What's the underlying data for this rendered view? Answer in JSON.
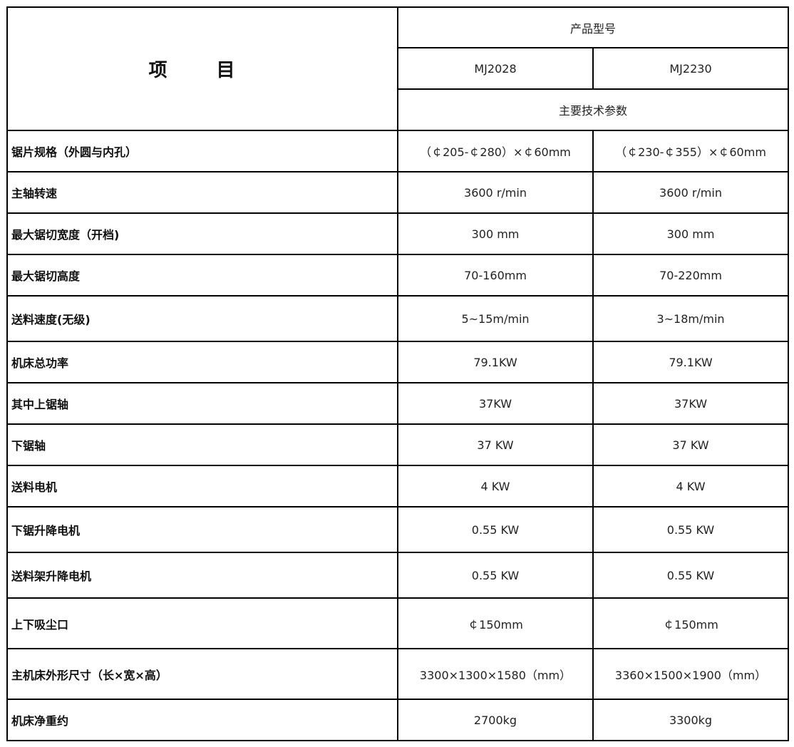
{
  "header": {
    "item_title": "项 目",
    "product_model": "产品型号",
    "models": [
      "MJ2028",
      "MJ2230"
    ],
    "main_params": "主要技术参数"
  },
  "rows": [
    {
      "label": "锯片规格（外圆与内孔）",
      "values": [
        "（￠205-￠280）×￠60mm",
        "（￠230-￠355）×￠60mm"
      ]
    },
    {
      "label": "主轴转速",
      "values": [
        "3600 r/min",
        "3600 r/min"
      ]
    },
    {
      "label": "最大锯切宽度（开档)",
      "values": [
        "300 mm",
        "300 mm"
      ]
    },
    {
      "label": "最大锯切高度",
      "values": [
        "70-160mm",
        "70-220mm"
      ]
    },
    {
      "label": "送料速度(无级)",
      "values": [
        "5~15m/min",
        "3~18m/min"
      ]
    },
    {
      "label": "机床总功率",
      "values": [
        "79.1KW",
        "79.1KW"
      ]
    },
    {
      "label": "其中上锯轴",
      "values": [
        "37KW",
        "37KW"
      ]
    },
    {
      "label": "下锯轴",
      "values": [
        "37 KW",
        "37 KW"
      ]
    },
    {
      "label": "送料电机",
      "values": [
        "4 KW",
        "4 KW"
      ]
    },
    {
      "label": "下锯升降电机",
      "values": [
        "0.55 KW",
        "0.55 KW"
      ]
    },
    {
      "label": "送料架升降电机",
      "values": [
        "0.55 KW",
        "0.55 KW"
      ]
    },
    {
      "label": "上下吸尘口",
      "values": [
        "￠150mm",
        "￠150mm"
      ]
    },
    {
      "label": "主机床外形尺寸（长×宽×高）",
      "values": [
        "3300×1300×1580（mm）",
        "3360×1500×1900（mm）"
      ]
    },
    {
      "label": "机床净重约",
      "values": [
        "2700kg",
        "3300kg"
      ]
    }
  ]
}
